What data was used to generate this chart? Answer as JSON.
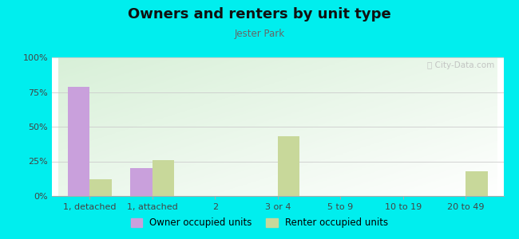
{
  "title": "Owners and renters by unit type",
  "subtitle": "Jester Park",
  "categories": [
    "1, detached",
    "1, attached",
    "2",
    "3 or 4",
    "5 to 9",
    "10 to 19",
    "20 to 49"
  ],
  "owner_values": [
    79,
    20,
    0,
    0,
    0,
    0,
    0
  ],
  "renter_values": [
    12,
    26,
    0,
    43,
    0,
    0,
    18
  ],
  "owner_color": "#c9a0dc",
  "renter_color": "#c8d89a",
  "background_color": "#00eeee",
  "ylim": [
    0,
    100
  ],
  "yticks": [
    0,
    25,
    50,
    75,
    100
  ],
  "ytick_labels": [
    "0%",
    "25%",
    "50%",
    "75%",
    "100%"
  ],
  "legend_owner": "Owner occupied units",
  "legend_renter": "Renter occupied units",
  "bar_width": 0.35
}
